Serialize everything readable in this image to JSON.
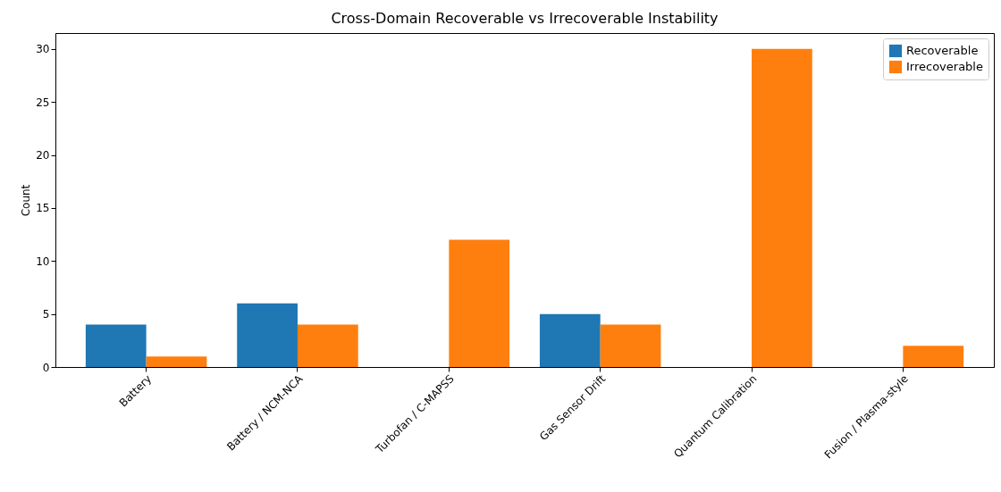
{
  "chart_data": {
    "type": "bar",
    "title": "Cross-Domain Recoverable vs Irrecoverable Instability",
    "ylabel": "Count",
    "categories": [
      "Battery",
      "Battery / NCM-NCA",
      "Turbofan / C-MAPSS",
      "Gas Sensor Drift",
      "Quantum Calibration",
      "Fusion / Plasma-style"
    ],
    "series": [
      {
        "name": "Recoverable",
        "color": "#1f77b4",
        "values": [
          4,
          6,
          0,
          5,
          0,
          0
        ]
      },
      {
        "name": "Irrecoverable",
        "color": "#ff7f0e",
        "values": [
          1,
          4,
          12,
          4,
          30,
          2
        ]
      }
    ],
    "ylim": [
      0,
      31.5
    ],
    "yticks": [
      0,
      5,
      10,
      15,
      20,
      25,
      30
    ],
    "legend": "top right"
  }
}
